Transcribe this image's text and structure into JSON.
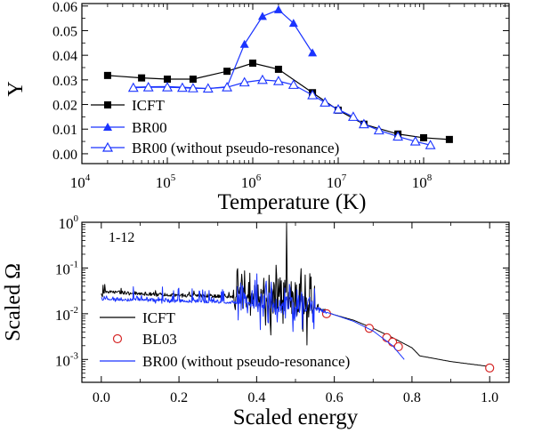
{
  "chart_data": [
    {
      "type": "line",
      "xscale": "log",
      "xlim_exp": [
        4,
        9
      ],
      "xticks": [
        {
          "base": "10",
          "exp": "4",
          "e": 4
        },
        {
          "base": "10",
          "exp": "5",
          "e": 5
        },
        {
          "base": "10",
          "exp": "6",
          "e": 6
        },
        {
          "base": "10",
          "exp": "7",
          "e": 7
        },
        {
          "base": "10",
          "exp": "8",
          "e": 8
        }
      ],
      "ylim": [
        -0.004,
        0.061
      ],
      "yticks": [
        "0.00",
        "0.01",
        "0.02",
        "0.03",
        "0.04",
        "0.05",
        "0.06"
      ],
      "xlabel": "Temperature (K)",
      "ylabel": "Υ",
      "legend": [
        "ICFT",
        "BR00",
        "BR00 (without pseudo-resonance)"
      ],
      "series": [
        {
          "name": "ICFT",
          "color": "#000000",
          "marker": "square",
          "x": [
            20000,
            50000,
            100000,
            200000,
            500000,
            1000000,
            2000000,
            5000000,
            10000000,
            20000000,
            50000000,
            100000000,
            200000000
          ],
          "y": [
            0.0318,
            0.0308,
            0.0303,
            0.0303,
            0.0335,
            0.0368,
            0.0343,
            0.0248,
            0.0177,
            0.012,
            0.008,
            0.0065,
            0.0058
          ]
        },
        {
          "name": "BR00",
          "color": "#1a33ff",
          "marker": "triangle-filled",
          "x": [
            40000,
            60000,
            100000,
            150000,
            200000,
            300000,
            500000,
            800000,
            1300000,
            2000000,
            3000000,
            5000000
          ],
          "y": [
            0.027,
            0.0272,
            0.0273,
            0.027,
            0.0268,
            0.0265,
            0.0272,
            0.0445,
            0.0558,
            0.0585,
            0.053,
            0.041
          ]
        },
        {
          "name": "BR00 (without pseudo-resonance)",
          "color": "#1a33ff",
          "marker": "triangle-open",
          "x": [
            40000,
            60000,
            100000,
            150000,
            200000,
            300000,
            500000,
            800000,
            1300000,
            2000000,
            3000000,
            5000000,
            7000000,
            10000000,
            15000000,
            20000000,
            30000000,
            50000000,
            80000000,
            120000000
          ],
          "y": [
            0.0268,
            0.027,
            0.027,
            0.0268,
            0.0266,
            0.0265,
            0.027,
            0.029,
            0.03,
            0.0295,
            0.028,
            0.0238,
            0.0208,
            0.018,
            0.015,
            0.012,
            0.0095,
            0.007,
            0.005,
            0.0035
          ]
        }
      ]
    },
    {
      "type": "line",
      "yscale": "log",
      "xlim": [
        -0.05,
        1.05
      ],
      "ylim_exp": [
        -3.5,
        0
      ],
      "xticks": [
        "0.0",
        "0.2",
        "0.4",
        "0.6",
        "0.8",
        "1.0"
      ],
      "yticks": [
        {
          "base": "10",
          "exp": "-3",
          "e": -3
        },
        {
          "base": "10",
          "exp": "-2",
          "e": -2
        },
        {
          "base": "10",
          "exp": "-1",
          "e": -1
        },
        {
          "base": "10",
          "exp": "0",
          "e": 0
        }
      ],
      "xlabel": "Scaled energy",
      "ylabel": "Scaled Ω",
      "annotation": "1-12",
      "legend": [
        "ICFT",
        "BL03",
        "BR00 (without pseudo-resonance)"
      ],
      "series": [
        {
          "name": "ICFT",
          "color": "#000000",
          "style": "line-noisy",
          "x": [
            0.0,
            0.1,
            0.2,
            0.3,
            0.38,
            0.42,
            0.46,
            0.5,
            0.53,
            0.56,
            0.6,
            0.65,
            0.7,
            0.75,
            0.8,
            0.82,
            0.9,
            1.0
          ],
          "y": [
            0.03,
            0.027,
            0.025,
            0.024,
            0.022,
            0.02,
            0.02,
            0.018,
            0.016,
            0.0125,
            0.0095,
            0.0072,
            0.0048,
            0.003,
            0.0018,
            0.0012,
            0.0009,
            0.0007
          ]
        },
        {
          "name": "BL03",
          "color": "#d62828",
          "marker": "circle-open",
          "x": [
            0.58,
            0.69,
            0.735,
            0.75,
            0.765,
            1.0
          ],
          "y": [
            0.01,
            0.0048,
            0.003,
            0.0024,
            0.0019,
            0.00065
          ]
        },
        {
          "name": "BR00 (without pseudo-resonance)",
          "color": "#1a33ff",
          "style": "line-noisy",
          "x": [
            0.0,
            0.1,
            0.2,
            0.3,
            0.4,
            0.45,
            0.5,
            0.55,
            0.6,
            0.65,
            0.7,
            0.75,
            0.78
          ],
          "y": [
            0.021,
            0.02,
            0.019,
            0.018,
            0.017,
            0.016,
            0.015,
            0.013,
            0.0095,
            0.0068,
            0.0042,
            0.002,
            0.001
          ]
        }
      ]
    }
  ]
}
